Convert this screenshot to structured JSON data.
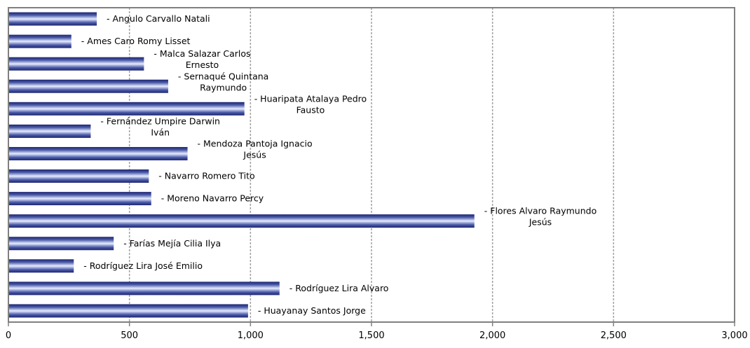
{
  "chart_data": {
    "type": "bar",
    "orientation": "horizontal",
    "grid": true,
    "xlim": [
      0,
      3000
    ],
    "x_ticks": [
      0,
      500,
      1000,
      1500,
      2000,
      2500,
      3000
    ],
    "x_tick_labels": [
      "0",
      "500",
      "1,000",
      "1,500",
      "2,000",
      "2,500",
      "3,000"
    ],
    "xlabel": "",
    "ylabel": "",
    "title": "",
    "categories": [
      [
        "- Angulo Carvallo Natali"
      ],
      [
        "- Ames Caro Romy Lisset"
      ],
      [
        "- Malca Salazar Carlos",
        "Ernesto"
      ],
      [
        "- Sernaqué Quintana",
        "Raymundo"
      ],
      [
        "- Huaripata Atalaya Pedro",
        "Fausto"
      ],
      [
        "- Fernández Umpire Darwin",
        "Iván"
      ],
      [
        "- Mendoza Pantoja Ignacio",
        "Jesús"
      ],
      [
        "- Navarro Romero Tito"
      ],
      [
        "- Moreno Navarro Percy"
      ],
      [
        "- Flores  Alvaro Raymundo",
        "Jesús"
      ],
      [
        "- Farías Mejía Cilia Ilya"
      ],
      [
        "- Rodríguez Lira José Emilio"
      ],
      [
        "- Rodríguez Lira Alvaro"
      ],
      [
        "- Huayanay Santos Jorge"
      ]
    ],
    "values": [
      365,
      260,
      560,
      660,
      975,
      340,
      740,
      580,
      590,
      1925,
      435,
      270,
      1120,
      990
    ]
  }
}
